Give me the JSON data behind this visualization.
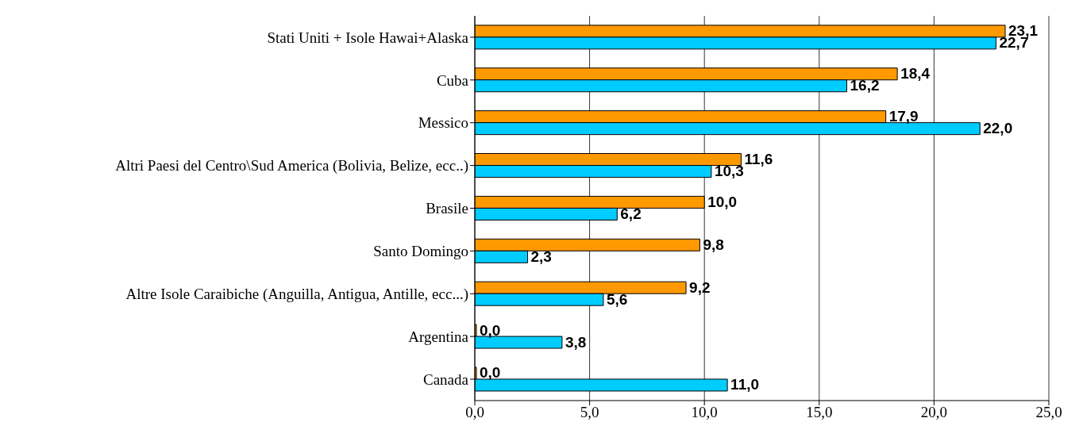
{
  "chart_data": {
    "type": "bar",
    "orientation": "horizontal",
    "categories": [
      "Stati Uniti + Isole Hawai+Alaska",
      "Cuba",
      "Messico",
      "Altri Paesi del Centro\\Sud America (Bolivia, Belize, ecc..)",
      "Brasile",
      "Santo Domingo",
      "Altre Isole Caraibiche (Anguilla, Antigua, Antille, ecc...)",
      "Argentina",
      "Canada"
    ],
    "series": [
      {
        "color": "#ff9900",
        "values": [
          23.1,
          18.4,
          17.9,
          11.6,
          10.0,
          9.8,
          9.2,
          0.0,
          0.0
        ],
        "value_labels": [
          "23,1",
          "18,4",
          "17,9",
          "11,6",
          "10,0",
          "9,8",
          "9,2",
          "0,0",
          "0,0"
        ]
      },
      {
        "color": "#00ccff",
        "values": [
          22.7,
          16.2,
          22.0,
          10.3,
          6.2,
          2.3,
          5.6,
          3.8,
          11.0
        ],
        "value_labels": [
          "22,7",
          "16,2",
          "22,0",
          "10,3",
          "6,2",
          "2,3",
          "5,6",
          "3,8",
          "11,0"
        ]
      }
    ],
    "xlim": [
      0,
      25
    ],
    "xticks": [
      {
        "value": 0,
        "label": "0,0"
      },
      {
        "value": 5,
        "label": "5,0"
      },
      {
        "value": 10,
        "label": "10,0"
      },
      {
        "value": 15,
        "label": "15,0"
      },
      {
        "value": 20,
        "label": "20,0"
      },
      {
        "value": 25,
        "label": "25,0"
      }
    ],
    "grid": "x",
    "legend": false
  }
}
